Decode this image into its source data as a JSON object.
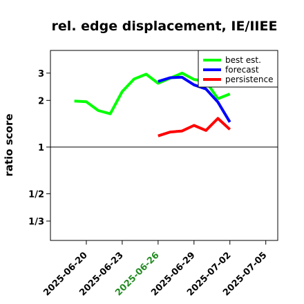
{
  "chart_data": {
    "type": "line",
    "title": "rel. edge displacement, IE/IIEE",
    "xlabel": "",
    "ylabel": "ratio score",
    "y_scale": "log",
    "y_ticks": [
      {
        "value": 0.3333,
        "label": "1/3"
      },
      {
        "value": 0.5,
        "label": "1/2"
      },
      {
        "value": 1,
        "label": "1"
      },
      {
        "value": 2,
        "label": "2"
      },
      {
        "value": 3,
        "label": "3"
      }
    ],
    "ylim": [
      0.25,
      4.2
    ],
    "xlim": [
      "2025-06-17",
      "2025-07-06"
    ],
    "x_ticks": [
      {
        "date": "2025-06-20",
        "label": "2025-06-20",
        "color": "#000000"
      },
      {
        "date": "2025-06-23",
        "label": "2025-06-23",
        "color": "#000000"
      },
      {
        "date": "2025-06-26",
        "label": "2025-06-26",
        "color": "#228B22"
      },
      {
        "date": "2025-06-29",
        "label": "2025-06-29",
        "color": "#000000"
      },
      {
        "date": "2025-07-02",
        "label": "2025-07-02",
        "color": "#000000"
      },
      {
        "date": "2025-07-05",
        "label": "2025-07-05",
        "color": "#000000"
      }
    ],
    "reference_line": 1,
    "legend_position": "top-right",
    "series": [
      {
        "name": "best est.",
        "color": "#00ff00",
        "points": [
          {
            "x": "2025-06-19",
            "y": 1.98
          },
          {
            "x": "2025-06-20",
            "y": 1.96
          },
          {
            "x": "2025-06-21",
            "y": 1.72
          },
          {
            "x": "2025-06-22",
            "y": 1.64
          },
          {
            "x": "2025-06-23",
            "y": 2.28
          },
          {
            "x": "2025-06-24",
            "y": 2.75
          },
          {
            "x": "2025-06-25",
            "y": 2.95
          },
          {
            "x": "2025-06-26",
            "y": 2.58
          },
          {
            "x": "2025-06-27",
            "y": 2.78
          },
          {
            "x": "2025-06-28",
            "y": 3.0
          },
          {
            "x": "2025-06-29",
            "y": 2.73
          },
          {
            "x": "2025-06-30",
            "y": 2.65
          },
          {
            "x": "2025-07-01",
            "y": 2.05
          },
          {
            "x": "2025-07-02",
            "y": 2.2
          }
        ]
      },
      {
        "name": "forecast",
        "color": "#0000ff",
        "points": [
          {
            "x": "2025-06-26",
            "y": 2.65
          },
          {
            "x": "2025-06-27",
            "y": 2.8
          },
          {
            "x": "2025-06-28",
            "y": 2.82
          },
          {
            "x": "2025-06-29",
            "y": 2.52
          },
          {
            "x": "2025-06-30",
            "y": 2.37
          },
          {
            "x": "2025-07-01",
            "y": 1.95
          },
          {
            "x": "2025-07-02",
            "y": 1.45
          }
        ]
      },
      {
        "name": "persistence",
        "color": "#ff0000",
        "points": [
          {
            "x": "2025-06-26",
            "y": 1.18
          },
          {
            "x": "2025-06-27",
            "y": 1.25
          },
          {
            "x": "2025-06-28",
            "y": 1.27
          },
          {
            "x": "2025-06-29",
            "y": 1.38
          },
          {
            "x": "2025-06-30",
            "y": 1.28
          },
          {
            "x": "2025-07-01",
            "y": 1.53
          },
          {
            "x": "2025-07-02",
            "y": 1.3
          }
        ]
      }
    ]
  }
}
